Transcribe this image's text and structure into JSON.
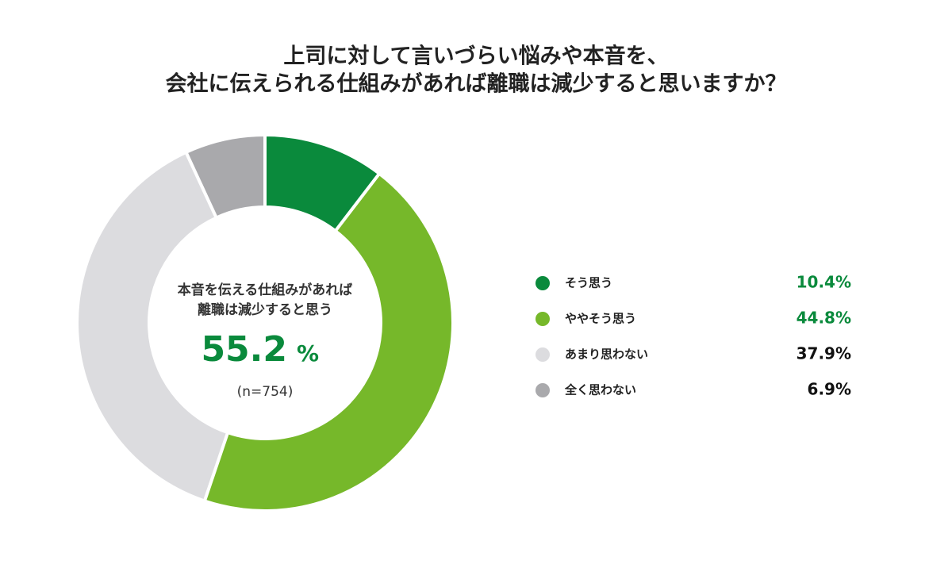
{
  "chart_data": {
    "type": "donut",
    "title": [
      "上司に対して言いづらい悩みや本音を、",
      "会社に伝えられる仕組みがあれば離職は減少すると思いますか？"
    ],
    "center_text": [
      "本音を伝える仕組みがあれば",
      "離職は減少すると思う"
    ],
    "center_value": 55.2,
    "center_unit": "%",
    "sample_size": "(n=754)",
    "categories": [
      "そう思う",
      "ややそう思う",
      "あまり思わない",
      "全く思わない"
    ],
    "values": [
      10.4,
      44.8,
      37.9,
      6.9
    ],
    "value_labels": [
      "10.4%",
      "44.8%",
      "37.9%",
      "6.9%"
    ],
    "colors": [
      "#0a8a3c",
      "#76b82a",
      "#dcdcdf",
      "#a9a9ac"
    ],
    "value_label_colors": [
      "#0a8a3c",
      "#0a8a3c",
      "#111111",
      "#111111"
    ],
    "legend": "right"
  }
}
